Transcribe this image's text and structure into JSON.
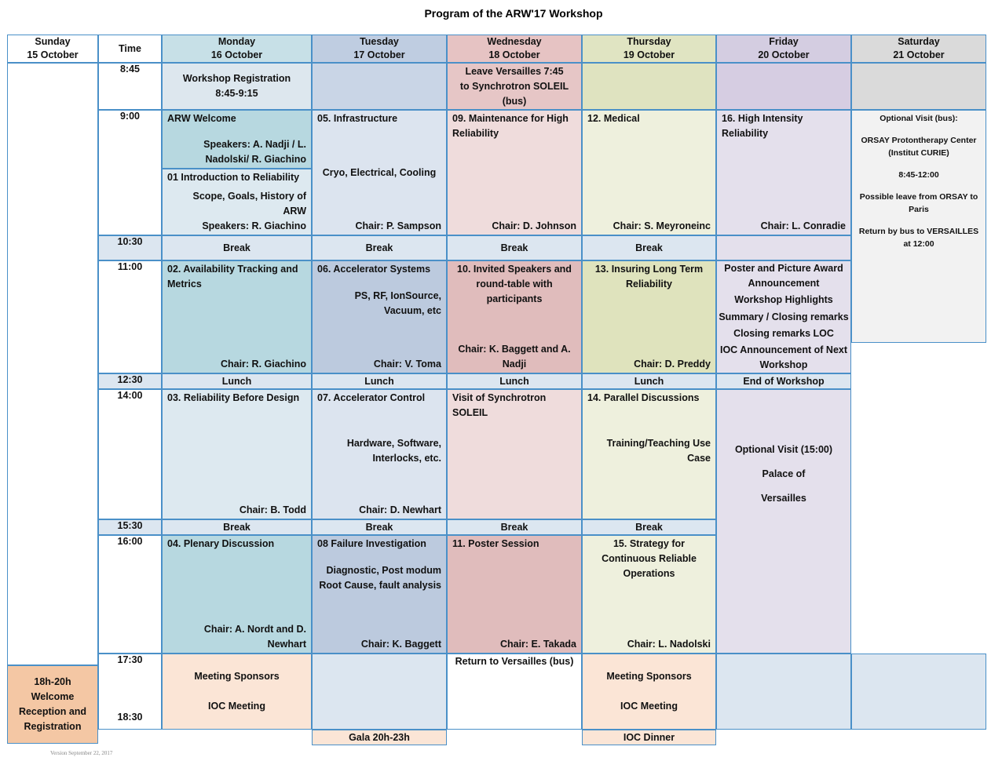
{
  "title": "Program of the ARW'17 Workshop",
  "days": [
    {
      "day": "Sunday",
      "date": "15 October"
    },
    {
      "day": "Time"
    },
    {
      "day": "Monday",
      "date": "16 October"
    },
    {
      "day": "Tuesday",
      "date": "17 October"
    },
    {
      "day": "Wednesday",
      "date": "18 October"
    },
    {
      "day": "Thursday",
      "date": "19 October"
    },
    {
      "day": "Friday",
      "date": "20 October"
    },
    {
      "day": "Saturday",
      "date": "21 October"
    }
  ],
  "times": [
    "8:45",
    "9:00",
    "10:30",
    "11:00",
    "12:30",
    "14:00",
    "15:30",
    "16:00",
    "17:30",
    "18:30"
  ],
  "cells": [
    {
      "lines": [
        "Workshop Registration",
        "8:45-9:15"
      ]
    },
    {
      "lines": [
        "Leave Versailles 7:45",
        "to Synchrotron SOLEIL (bus)"
      ]
    },
    {
      "title": "ARW Welcome",
      "chair": "Speakers: A. Nadji / L. Nadolski/ R. Giachino"
    },
    {
      "title": "01 Introduction to Reliability",
      "body": [
        "Scope, Goals, History of ARW"
      ],
      "chair": "Speakers: R. Giachino"
    },
    {
      "title": "05. Infrastructure",
      "body": [
        "Cryo, Electrical, Cooling"
      ],
      "chair": "Chair: P. Sampson"
    },
    {
      "title": "09. Maintenance for High Reliability",
      "chair": "Chair: D. Johnson"
    },
    {
      "title": "12. Medical",
      "chair": "Chair: S. Meyroneinc"
    },
    {
      "title": "16. High Intensity Reliability",
      "chair": "Chair: L. Conradie"
    },
    {
      "lines": [
        "Optional Visit (bus):",
        "ORSAY Protontherapy Center (Institut CURIE)",
        "8:45-12:00",
        "Possible leave from ORSAY to Paris",
        "Return by bus to VERSAILLES at 12:00"
      ]
    },
    {
      "lines": [
        "Break"
      ]
    },
    {
      "lines": [
        "Break"
      ]
    },
    {
      "lines": [
        "Break"
      ]
    },
    {
      "lines": [
        "Break"
      ]
    },
    {
      "title": "02. Availability Tracking and Metrics",
      "chair": "Chair: R. Giachino"
    },
    {
      "title": "06. Accelerator Systems",
      "body": [
        "PS, RF, IonSource, Vacuum, etc"
      ],
      "chair": "Chair: V. Toma"
    },
    {
      "title": "10. Invited Speakers and round-table with participants",
      "chair": "Chair: K. Baggett and A. Nadji"
    },
    {
      "title": "13. Insuring Long Term Reliability",
      "chair": "Chair: D. Preddy"
    },
    {
      "lines": [
        "Poster and Picture Award Announcement",
        "Workshop Highlights",
        "Summary / Closing remarks",
        "Closing remarks LOC",
        "IOC Announcement of Next Workshop"
      ]
    },
    {
      "lines": [
        "Lunch"
      ]
    },
    {
      "lines": [
        "Lunch"
      ]
    },
    {
      "lines": [
        "Lunch"
      ]
    },
    {
      "lines": [
        "Lunch"
      ]
    },
    {
      "lines": [
        "End of Workshop"
      ]
    },
    {
      "title": "03.  Reliability Before Design",
      "chair": "Chair: B. Todd"
    },
    {
      "title": "07. Accelerator Control",
      "body": [
        "Hardware, Software, Interlocks, etc."
      ],
      "chair": "Chair: D. Newhart"
    },
    {
      "title": "Visit of  Synchrotron SOLEIL"
    },
    {
      "title": "14. Parallel Discussions",
      "body": [
        "Training/Teaching Use Case"
      ]
    },
    {
      "lines": [
        "Optional Visit  (15:00)",
        "Palace of",
        "Versailles"
      ]
    },
    {
      "lines": [
        "Break"
      ]
    },
    {
      "lines": [
        "Break"
      ]
    },
    {
      "lines": [
        "Break"
      ]
    },
    {
      "lines": [
        "Break"
      ]
    },
    {
      "title": "04. Plenary Discussion",
      "chair": "Chair: A. Nordt and D. Newhart"
    },
    {
      "title": "08 Failure Investigation",
      "body": [
        "Diagnostic, Post modum Root Cause, fault analysis"
      ],
      "chair": "Chair: K. Baggett"
    },
    {
      "title": "11. Poster Session",
      "chair": "Chair: E. Takada"
    },
    {
      "title": "15. Strategy for Continuous Reliable Operations",
      "chair": "Chair: L. Nadolski"
    },
    {
      "lines": [
        "Meeting Sponsors",
        "IOC Meeting"
      ]
    },
    {
      "lines": [
        "Return to Versailles (bus)"
      ]
    },
    {
      "lines": [
        "Meeting Sponsors",
        "IOC Meeting"
      ]
    },
    {
      "lines": [
        "Gala  20h-23h"
      ]
    },
    {
      "lines": [
        "IOC Dinner"
      ]
    },
    {
      "lines": [
        "18h-20h Welcome Reception and Registration"
      ]
    }
  ],
  "version": "Version September 22, 2017"
}
